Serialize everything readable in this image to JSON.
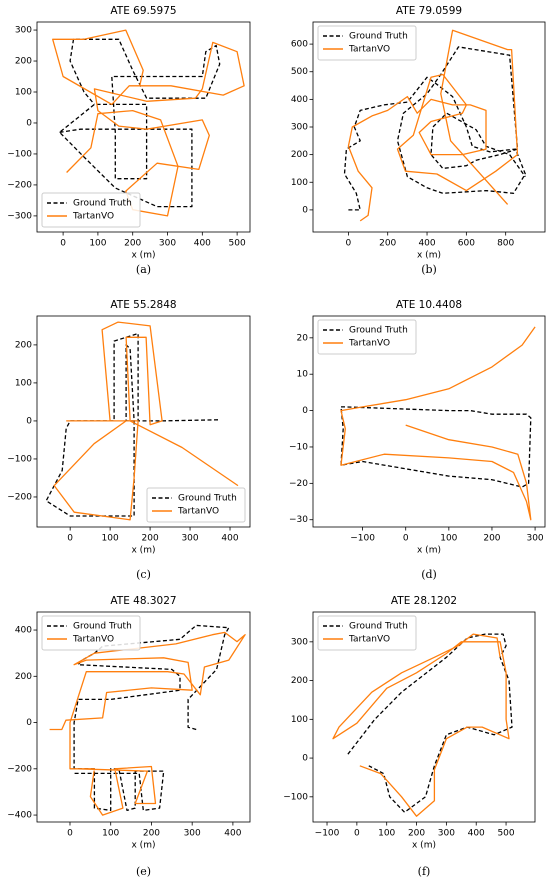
{
  "chart_data": [
    {
      "type": "line",
      "title": "ATE 69.5975",
      "xlabel": "x (m)",
      "caption": "(a)",
      "legend": "lower left",
      "xlim": [
        -75,
        537
      ],
      "ylim": [
        -352,
        326
      ],
      "xticks": [
        0,
        100,
        200,
        300,
        400,
        500
      ],
      "yticks": [
        {
          "value": -300,
          "label": "−300"
        },
        {
          "value": -200,
          "label": "−200"
        },
        {
          "value": -100,
          "label": "−100"
        },
        0,
        100,
        200,
        300
      ],
      "series": [
        {
          "name": "Ground Truth",
          "color": "#000000",
          "style": "dashed",
          "x": [
            -10,
            50,
            190,
            370,
            370,
            270,
            150,
            60,
            -10,
            90,
            240,
            240,
            150,
            150,
            140,
            400,
            410,
            440,
            450,
            410,
            240,
            200,
            160,
            30,
            20,
            60,
            90
          ],
          "values": [
            -30,
            -20,
            -20,
            -20,
            -270,
            -270,
            -210,
            -110,
            -30,
            60,
            60,
            -180,
            -180,
            -30,
            150,
            150,
            230,
            250,
            190,
            80,
            80,
            170,
            270,
            270,
            200,
            100,
            60
          ]
        },
        {
          "name": "TartanVO",
          "color": "#ff7f0e",
          "style": "solid",
          "x": [
            10,
            80,
            100,
            200,
            280,
            330,
            300,
            200,
            180,
            270,
            390,
            420,
            400,
            240,
            160,
            100,
            90,
            240,
            380,
            400,
            430,
            500,
            520,
            460,
            310,
            190,
            140,
            0,
            -30,
            60,
            180,
            230,
            220
          ],
          "values": [
            -160,
            -80,
            30,
            40,
            10,
            -140,
            -300,
            -280,
            -220,
            -130,
            -150,
            -40,
            10,
            -20,
            -10,
            40,
            110,
            70,
            80,
            110,
            260,
            230,
            120,
            90,
            120,
            120,
            60,
            150,
            270,
            270,
            300,
            170,
            120
          ]
        }
      ]
    },
    {
      "type": "line",
      "title": "ATE 79.0599",
      "xlabel": "x (m)",
      "caption": "(b)",
      "legend": "upper left",
      "xlim": [
        -180,
        1000
      ],
      "ylim": [
        -80,
        680
      ],
      "xticks": [
        0,
        200,
        400,
        600,
        800
      ],
      "yticks": [
        0,
        100,
        200,
        300,
        400,
        500,
        600
      ],
      "series": [
        {
          "name": "Ground Truth",
          "color": "#000000",
          "style": "dashed",
          "x": [
            0,
            60,
            40,
            -20,
            -10,
            60,
            30,
            60,
            180,
            300,
            400,
            440,
            530,
            600,
            630,
            720,
            850,
            900,
            840,
            700,
            480,
            400,
            300,
            250,
            280,
            400,
            470,
            560,
            820,
            860,
            770,
            650,
            600,
            480,
            420,
            430,
            500,
            650,
            700,
            820,
            900
          ],
          "values": [
            0,
            0,
            60,
            130,
            220,
            250,
            300,
            360,
            380,
            390,
            480,
            460,
            410,
            300,
            230,
            210,
            220,
            130,
            60,
            70,
            60,
            80,
            120,
            250,
            350,
            420,
            490,
            590,
            560,
            220,
            200,
            180,
            160,
            150,
            200,
            300,
            350,
            290,
            230,
            200,
            120
          ]
        },
        {
          "name": "TartanVO",
          "color": "#ff7f0e",
          "style": "solid",
          "x": [
            60,
            100,
            120,
            50,
            0,
            20,
            120,
            200,
            300,
            350,
            420,
            530,
            620,
            700,
            700,
            580,
            420,
            360,
            420,
            580,
            600,
            480,
            420,
            330,
            250,
            290,
            450,
            600,
            750,
            860,
            830,
            810,
            530,
            470,
            520,
            810
          ],
          "values": [
            -40,
            -20,
            80,
            140,
            230,
            300,
            340,
            360,
            410,
            350,
            400,
            380,
            380,
            360,
            220,
            200,
            200,
            280,
            320,
            350,
            380,
            490,
            480,
            270,
            220,
            140,
            130,
            70,
            140,
            200,
            580,
            580,
            650,
            420,
            250,
            20
          ]
        }
      ]
    },
    {
      "type": "line",
      "title": "ATE 55.2848",
      "xlabel": "x (m)",
      "caption": "(c)",
      "legend": "lower right",
      "xlim": [
        -83,
        450
      ],
      "ylim": [
        -279,
        276
      ],
      "xticks": [
        0,
        100,
        200,
        300,
        400
      ],
      "yticks": [
        {
          "value": -200,
          "label": "−200"
        },
        {
          "value": -100,
          "label": "−100"
        },
        0,
        100,
        200
      ],
      "series": [
        {
          "name": "Ground Truth",
          "color": "#000000",
          "style": "dashed",
          "x": [
            370,
            230,
            170,
            170,
            110,
            110,
            0,
            -10,
            -20,
            -60,
            0,
            160,
            160,
            150,
            140,
            140,
            165
          ],
          "values": [
            3,
            0,
            0,
            230,
            210,
            0,
            0,
            -20,
            -130,
            -210,
            -250,
            -250,
            0,
            190,
            200,
            0,
            0
          ]
        },
        {
          "name": "TartanVO",
          "color": "#ff7f0e",
          "style": "solid",
          "x": [
            -10,
            140,
            60,
            -40,
            10,
            150,
            160,
            170,
            100,
            80,
            120,
            200,
            230,
            200,
            190,
            140,
            150,
            280,
            420
          ],
          "values": [
            0,
            0,
            -60,
            -170,
            -240,
            -260,
            -150,
            0,
            0,
            240,
            260,
            250,
            0,
            -10,
            220,
            220,
            0,
            -70,
            -170
          ]
        }
      ]
    },
    {
      "type": "line",
      "title": "ATE 10.4408",
      "xlabel": "x (m)",
      "caption": "(d)",
      "legend": "upper left",
      "xlim": [
        -215,
        323
      ],
      "ylim": [
        -32,
        26
      ],
      "xticks": [
        {
          "value": -100,
          "label": "−100"
        },
        0,
        100,
        200,
        300
      ],
      "yticks": [
        {
          "value": -30,
          "label": "−30"
        },
        {
          "value": -20,
          "label": "−20"
        },
        {
          "value": -10,
          "label": "−10"
        },
        0,
        10,
        20
      ],
      "series": [
        {
          "name": "Ground Truth",
          "color": "#000000",
          "style": "dashed",
          "x": [
            -150,
            -140,
            100,
            150,
            200,
            280,
            290,
            285,
            270,
            200,
            100,
            -100,
            -150,
            -145,
            -150
          ],
          "values": [
            1,
            1,
            0,
            0,
            -1,
            -1,
            -2,
            -20,
            -21,
            -19,
            -18,
            -14,
            -15,
            -5,
            1
          ]
        },
        {
          "name": "TartanVO",
          "color": "#ff7f0e",
          "style": "solid",
          "x": [
            0,
            100,
            200,
            260,
            280,
            290,
            280,
            250,
            200,
            100,
            -50,
            -150,
            -140,
            -150,
            -100,
            0,
            100,
            200,
            270,
            300
          ],
          "values": [
            -4,
            -8,
            -10,
            -12,
            -20,
            -30,
            -25,
            -17,
            -14,
            -13,
            -12,
            -15,
            -5,
            0,
            1,
            3,
            6,
            12,
            18,
            23
          ]
        }
      ]
    },
    {
      "type": "line",
      "title": "ATE 48.3027",
      "xlabel": "x (m)",
      "caption": "(e)",
      "legend": "upper left",
      "xlim": [
        -81,
        442
      ],
      "ylim": [
        -430,
        478
      ],
      "xticks": [
        0,
        100,
        200,
        300,
        400
      ],
      "yticks": [
        {
          "value": -400,
          "label": "−400"
        },
        {
          "value": -200,
          "label": "−200"
        },
        0,
        200,
        400
      ],
      "series": [
        {
          "name": "Ground Truth",
          "color": "#000000",
          "style": "dashed",
          "x": [
            310,
            290,
            290,
            360,
            380,
            390,
            310,
            270,
            80,
            60,
            30,
            20,
            250,
            270,
            270,
            100,
            20,
            10,
            10,
            60,
            60,
            100,
            100,
            120,
            140,
            160,
            160,
            230,
            220,
            180,
            170,
            10
          ],
          "values": [
            -30,
            -20,
            100,
            230,
            380,
            410,
            420,
            360,
            330,
            300,
            270,
            250,
            230,
            200,
            140,
            100,
            100,
            0,
            -200,
            -200,
            -370,
            -380,
            -200,
            -200,
            -380,
            -370,
            -210,
            -210,
            -370,
            -380,
            -220,
            -220
          ]
        },
        {
          "name": "TartanVO",
          "color": "#ff7f0e",
          "style": "solid",
          "x": [
            -50,
            -20,
            -10,
            80,
            90,
            200,
            300,
            290,
            230,
            40,
            10,
            60,
            260,
            350,
            380,
            410,
            430,
            390,
            330,
            320,
            280,
            240,
            40,
            0,
            0,
            60,
            50,
            80,
            130,
            110,
            200,
            210,
            160,
            190,
            20
          ],
          "values": [
            -30,
            -30,
            10,
            20,
            130,
            150,
            140,
            260,
            280,
            270,
            250,
            300,
            340,
            380,
            390,
            350,
            380,
            270,
            240,
            120,
            210,
            220,
            220,
            0,
            -200,
            -200,
            -320,
            -400,
            -370,
            -200,
            -190,
            -350,
            -350,
            -210,
            -200
          ]
        }
      ]
    },
    {
      "type": "line",
      "title": "ATE 28.1202",
      "xlabel": "x (m)",
      "caption": "(f)",
      "legend": "upper left",
      "xlim": [
        -147,
        597
      ],
      "ylim": [
        -165,
        377
      ],
      "xticks": [
        {
          "value": -100,
          "label": "−100"
        },
        0,
        100,
        200,
        300,
        400,
        500
      ],
      "yticks": [
        {
          "value": -100,
          "label": "−100"
        },
        0,
        100,
        200,
        300
      ],
      "series": [
        {
          "name": "Ground Truth",
          "color": "#000000",
          "style": "dashed",
          "x": [
            -30,
            60,
            150,
            200,
            300,
            370,
            430,
            490,
            500,
            480,
            510,
            520,
            460,
            370,
            300,
            260,
            230,
            160,
            110,
            90,
            40
          ],
          "values": [
            10,
            100,
            170,
            200,
            260,
            310,
            320,
            320,
            290,
            260,
            200,
            80,
            60,
            80,
            60,
            -20,
            -100,
            -140,
            -100,
            -40,
            -20
          ]
        },
        {
          "name": "TartanVO",
          "color": "#ff7f0e",
          "style": "solid",
          "x": [
            10,
            80,
            150,
            200,
            260,
            260,
            300,
            370,
            420,
            510,
            500,
            500,
            480,
            400,
            350,
            300,
            200,
            100,
            0,
            -80,
            -60,
            50,
            150,
            260,
            340,
            390,
            470,
            480
          ],
          "values": [
            -20,
            -40,
            -100,
            -150,
            -110,
            -30,
            50,
            80,
            80,
            50,
            100,
            220,
            300,
            300,
            300,
            270,
            220,
            180,
            90,
            50,
            80,
            170,
            220,
            260,
            290,
            320,
            310,
            260
          ]
        }
      ]
    }
  ]
}
